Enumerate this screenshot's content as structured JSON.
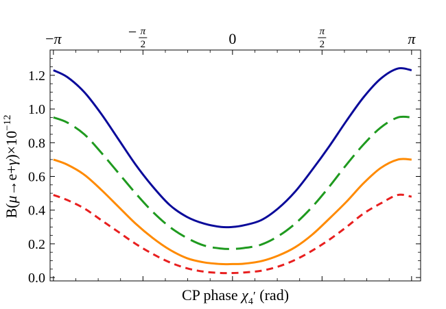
{
  "chart_data": {
    "type": "line",
    "title": "",
    "xlabel_parts": {
      "prefix": "CP phase ",
      "symbol": "χ",
      "subscript": "4",
      "prime": "′",
      "suffix": " (rad)"
    },
    "ylabel_parts": {
      "prefix": "B(",
      "mu": "μ",
      "middle": "→e+",
      "gamma": "γ",
      "suffix": ")×10",
      "exponent": "−12"
    },
    "xlim": [
      -3.2,
      3.3
    ],
    "ylim": [
      -0.02,
      1.35
    ],
    "yticks": [
      {
        "value": 0.0,
        "label": "0.0"
      },
      {
        "value": 0.2,
        "label": "0.2"
      },
      {
        "value": 0.4,
        "label": "0.4"
      },
      {
        "value": 0.6,
        "label": "0.6"
      },
      {
        "value": 0.8,
        "label": "0.8"
      },
      {
        "value": 1.0,
        "label": "1.0"
      },
      {
        "value": 1.2,
        "label": "1.2"
      }
    ],
    "top_xticks": [
      {
        "value": -3.1416,
        "sign": "−",
        "main": "π",
        "num": "",
        "den": ""
      },
      {
        "value": -1.5708,
        "sign": "−",
        "main": "",
        "num": "π",
        "den": "2"
      },
      {
        "value": 0,
        "sign": "",
        "main": "0",
        "num": "",
        "den": ""
      },
      {
        "value": 1.5708,
        "sign": "",
        "main": "",
        "num": "π",
        "den": "2"
      },
      {
        "value": 3.1416,
        "sign": "",
        "main": "π",
        "num": "",
        "den": ""
      }
    ],
    "series": [
      {
        "name": "solid-blue",
        "color": "#0a0a9a",
        "style": "solid",
        "points": [
          [
            -3.1416,
            1.23
          ],
          [
            -2.9,
            1.19
          ],
          [
            -2.6,
            1.1
          ],
          [
            -2.3,
            0.97
          ],
          [
            -2.0,
            0.82
          ],
          [
            -1.7,
            0.67
          ],
          [
            -1.4,
            0.54
          ],
          [
            -1.1,
            0.43
          ],
          [
            -0.8,
            0.36
          ],
          [
            -0.5,
            0.32
          ],
          [
            -0.2,
            0.3
          ],
          [
            0.0,
            0.3
          ],
          [
            0.2,
            0.31
          ],
          [
            0.5,
            0.34
          ],
          [
            0.8,
            0.41
          ],
          [
            1.1,
            0.51
          ],
          [
            1.4,
            0.64
          ],
          [
            1.7,
            0.78
          ],
          [
            2.0,
            0.93
          ],
          [
            2.3,
            1.07
          ],
          [
            2.6,
            1.18
          ],
          [
            2.9,
            1.24
          ],
          [
            3.1416,
            1.23
          ]
        ]
      },
      {
        "name": "dashed-green",
        "color": "#1f9a1f",
        "style": "dashed",
        "points": [
          [
            -3.1416,
            0.95
          ],
          [
            -2.9,
            0.92
          ],
          [
            -2.6,
            0.85
          ],
          [
            -2.3,
            0.74
          ],
          [
            -2.0,
            0.62
          ],
          [
            -1.7,
            0.5
          ],
          [
            -1.4,
            0.39
          ],
          [
            -1.1,
            0.3
          ],
          [
            -0.8,
            0.235
          ],
          [
            -0.5,
            0.19
          ],
          [
            -0.2,
            0.172
          ],
          [
            0.0,
            0.17
          ],
          [
            0.2,
            0.175
          ],
          [
            0.5,
            0.195
          ],
          [
            0.8,
            0.245
          ],
          [
            1.1,
            0.32
          ],
          [
            1.4,
            0.42
          ],
          [
            1.7,
            0.54
          ],
          [
            2.0,
            0.67
          ],
          [
            2.3,
            0.79
          ],
          [
            2.6,
            0.89
          ],
          [
            2.9,
            0.95
          ],
          [
            3.1416,
            0.95
          ]
        ]
      },
      {
        "name": "solid-orange",
        "color": "#ff8a00",
        "style": "solid",
        "points": [
          [
            -3.1416,
            0.7
          ],
          [
            -2.9,
            0.67
          ],
          [
            -2.6,
            0.61
          ],
          [
            -2.3,
            0.52
          ],
          [
            -2.0,
            0.42
          ],
          [
            -1.7,
            0.32
          ],
          [
            -1.4,
            0.235
          ],
          [
            -1.1,
            0.165
          ],
          [
            -0.8,
            0.115
          ],
          [
            -0.5,
            0.09
          ],
          [
            -0.2,
            0.08
          ],
          [
            0.0,
            0.08
          ],
          [
            0.2,
            0.082
          ],
          [
            0.5,
            0.097
          ],
          [
            0.8,
            0.13
          ],
          [
            1.1,
            0.18
          ],
          [
            1.4,
            0.255
          ],
          [
            1.7,
            0.35
          ],
          [
            2.0,
            0.45
          ],
          [
            2.3,
            0.56
          ],
          [
            2.6,
            0.65
          ],
          [
            2.9,
            0.7
          ],
          [
            3.1416,
            0.7
          ]
        ]
      },
      {
        "name": "dotted-red",
        "color": "#e81f1f",
        "style": "dotted",
        "points": [
          [
            -3.1416,
            0.49
          ],
          [
            -2.9,
            0.46
          ],
          [
            -2.6,
            0.41
          ],
          [
            -2.3,
            0.34
          ],
          [
            -2.0,
            0.27
          ],
          [
            -1.7,
            0.2
          ],
          [
            -1.4,
            0.14
          ],
          [
            -1.1,
            0.09
          ],
          [
            -0.8,
            0.055
          ],
          [
            -0.5,
            0.035
          ],
          [
            -0.2,
            0.027
          ],
          [
            0.0,
            0.027
          ],
          [
            0.2,
            0.03
          ],
          [
            0.5,
            0.04
          ],
          [
            0.8,
            0.065
          ],
          [
            1.1,
            0.105
          ],
          [
            1.4,
            0.16
          ],
          [
            1.7,
            0.225
          ],
          [
            2.0,
            0.3
          ],
          [
            2.3,
            0.38
          ],
          [
            2.6,
            0.44
          ],
          [
            2.9,
            0.49
          ],
          [
            3.1416,
            0.48
          ]
        ]
      }
    ]
  }
}
